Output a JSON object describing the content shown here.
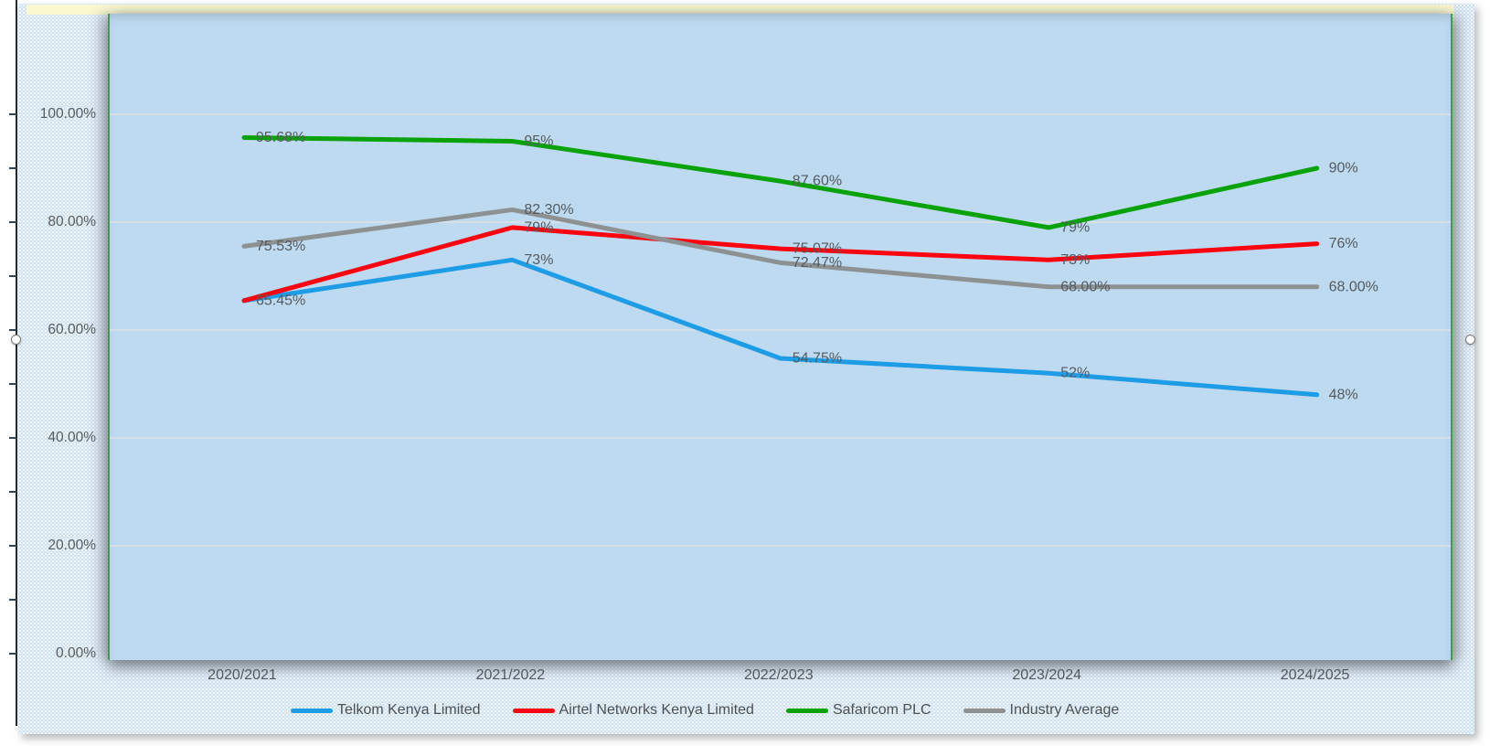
{
  "chart_data": {
    "type": "line",
    "title": "",
    "categories": [
      "2020/2021",
      "2021/2022",
      "2022/2023",
      "2023/2024",
      "2024/2025"
    ],
    "series": [
      {
        "name": "Telkom Kenya Limited",
        "color": "#1e9ce6",
        "values": [
          65.45,
          73,
          54.75,
          52,
          48
        ],
        "point_labels": [
          "",
          "73%",
          "54.75%",
          "52%",
          "48%"
        ]
      },
      {
        "name": "Airtel Networks Kenya Limited",
        "color": "#f90410",
        "values": [
          65.45,
          79,
          75.07,
          73,
          76
        ],
        "point_labels": [
          "65.45%",
          "79%",
          "75.07%",
          "73%",
          "76%"
        ]
      },
      {
        "name": "Safaricom PLC",
        "color": "#09a309",
        "values": [
          95.68,
          95,
          87.6,
          79,
          90
        ],
        "point_labels": [
          "95.68%",
          "95%",
          "87.60%",
          "79%",
          "90%"
        ]
      },
      {
        "name": "Industry Average",
        "color": "#8e9191",
        "values": [
          75.53,
          82.3,
          72.47,
          68,
          68
        ],
        "point_labels": [
          "75.53%",
          "82.30%",
          "72.47%",
          "68.00%",
          "68.00%"
        ]
      }
    ],
    "y_axis": {
      "tick_labels": [
        "100.00%",
        "80.00%",
        "60.00%",
        "40.00%",
        "20.00%",
        "0.00%"
      ],
      "min": 0,
      "max": 100,
      "step": 20
    },
    "grid": true,
    "legend_position": "bottom"
  },
  "styles": {
    "plot_background": "#bddaf0",
    "chart_margin_background": "#cbdff0",
    "plot_border_green": "#3fa03f",
    "top_strip_yellow": "#faf8cf",
    "gridline_color": "#d5e0e9",
    "data_label_color": "#545b60",
    "axis_text_color": "#565c60",
    "legend_text_color": "#4b5154"
  }
}
